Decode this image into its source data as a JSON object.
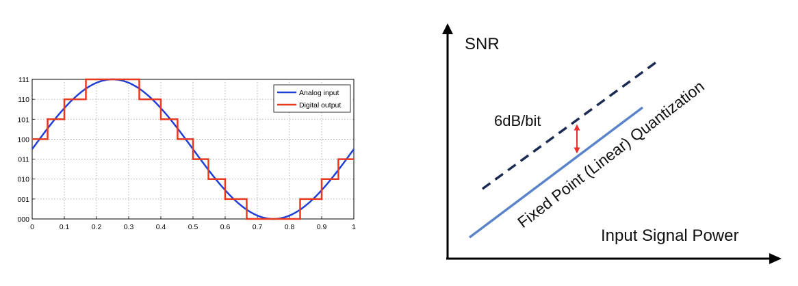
{
  "chart_data": [
    {
      "type": "line",
      "title": "",
      "xlabel": "",
      "ylabel": "",
      "xlim": [
        0,
        1
      ],
      "ylim": [
        0,
        7
      ],
      "grid": true,
      "legend_position": "top-right",
      "x_ticks": [
        "0",
        "0.1",
        "0.2",
        "0.3",
        "0.4",
        "0.5",
        "0.6",
        "0.7",
        "0.8",
        "0.9",
        "1"
      ],
      "y_ticks": [
        "000",
        "001",
        "010",
        "011",
        "100",
        "101",
        "110",
        "111"
      ],
      "series": [
        {
          "name": "Analog input",
          "color": "#1f3fd9",
          "function": "3.5 + 3.5*sin(2*pi*x)",
          "x": [
            0,
            0.05,
            0.1,
            0.15,
            0.2,
            0.25,
            0.3,
            0.35,
            0.4,
            0.45,
            0.5,
            0.55,
            0.6,
            0.65,
            0.7,
            0.75,
            0.8,
            0.85,
            0.9,
            0.95,
            1
          ],
          "values": [
            3.5,
            4.58,
            5.56,
            6.33,
            6.83,
            7.0,
            6.83,
            6.33,
            5.56,
            4.58,
            3.5,
            2.42,
            1.44,
            0.67,
            0.17,
            0.0,
            0.17,
            0.67,
            1.44,
            2.42,
            3.5
          ]
        },
        {
          "name": "Digital output",
          "color": "#e8391f",
          "step_x": [
            0,
            0.048,
            0.1,
            0.167,
            0.333,
            0.4,
            0.452,
            0.5,
            0.548,
            0.6,
            0.667,
            0.833,
            0.9,
            0.952,
            1
          ],
          "step_values": [
            4,
            5,
            6,
            7,
            6,
            5,
            4,
            3,
            2,
            1,
            0,
            1,
            2,
            3
          ]
        }
      ]
    },
    {
      "type": "line",
      "title": "",
      "xlabel": "Input Signal Power",
      "ylabel": "SNR",
      "grid": false,
      "annotations": {
        "delta_label": "6dB/bit",
        "line_label": "Fixed Point (Linear) Quantization"
      },
      "series": [
        {
          "style": "dashed",
          "color": "#1b2a52"
        },
        {
          "style": "solid",
          "color": "#5b84c8"
        }
      ]
    }
  ]
}
